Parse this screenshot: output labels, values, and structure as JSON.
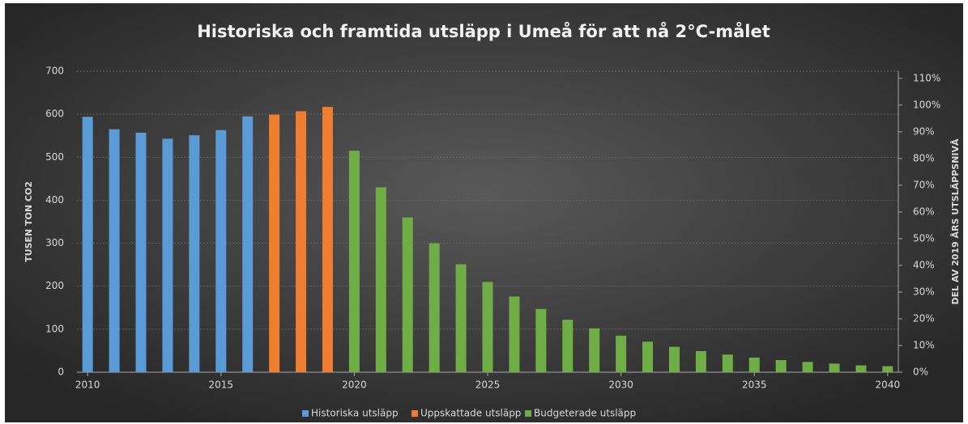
{
  "chart_data": {
    "type": "bar",
    "title": "Historiska och framtida utsläpp i Umeå för att nå 2°C-målet",
    "y_label": "TUSEN TON CO2",
    "y2_label": "DEL AV 2019 ÅRS UTSLÄPPSNIVÅ",
    "xlim": [
      2009.6,
      2040.4
    ],
    "xticks": [
      2010,
      2015,
      2020,
      2025,
      2030,
      2035,
      2040
    ],
    "ylim": [
      0,
      700
    ],
    "yticks": [
      0,
      100,
      200,
      300,
      400,
      500,
      600,
      700
    ],
    "y2lim": [
      0,
      112.7
    ],
    "y2ticks": [
      {
        "value": 0,
        "label": "0%"
      },
      {
        "value": 10,
        "label": "10%"
      },
      {
        "value": 20,
        "label": "20%"
      },
      {
        "value": 30,
        "label": "30%"
      },
      {
        "value": 40,
        "label": "40%"
      },
      {
        "value": 50,
        "label": "50%"
      },
      {
        "value": 60,
        "label": "60%"
      },
      {
        "value": 70,
        "label": "70%"
      },
      {
        "value": 80,
        "label": "80%"
      },
      {
        "value": 90,
        "label": "90%"
      },
      {
        "value": 100,
        "label": "100%"
      },
      {
        "value": 110,
        "label": "110%"
      }
    ],
    "grid": true,
    "legend": "bottom",
    "series": [
      {
        "name": "Historiska utsläpp",
        "color": "#5b9bd5",
        "x": [
          2010,
          2011,
          2012,
          2013,
          2014,
          2015,
          2016
        ],
        "values": [
          594,
          565,
          557,
          543,
          551,
          563,
          595
        ]
      },
      {
        "name": "Uppskattade utsläpp",
        "color": "#ed7d31",
        "x": [
          2017,
          2018,
          2019
        ],
        "values": [
          599,
          607,
          617
        ]
      },
      {
        "name": "Budgeterade utsläpp",
        "color": "#70ad47",
        "x": [
          2020,
          2021,
          2022,
          2023,
          2024,
          2025,
          2026,
          2027,
          2028,
          2029,
          2030,
          2031,
          2032,
          2033,
          2034,
          2035,
          2036,
          2037,
          2038,
          2039,
          2040
        ],
        "values": [
          515,
          430,
          360,
          300,
          251,
          210,
          176,
          147,
          122,
          102,
          85,
          71,
          59,
          49,
          41,
          34,
          28,
          24,
          20,
          16,
          14
        ]
      }
    ]
  }
}
